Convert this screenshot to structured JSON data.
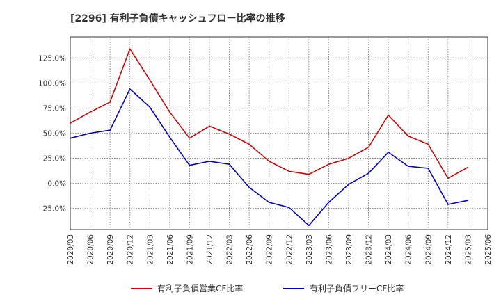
{
  "chart_data": {
    "type": "line",
    "title": "[2296]  有利子負債キャッシュフロー比率の推移",
    "xlabel": "",
    "ylabel": "",
    "ylim": [
      -46,
      146
    ],
    "y_ticks": [
      -25,
      0,
      25,
      50,
      75,
      100,
      125
    ],
    "y_tick_labels": [
      "-25.0%",
      "0.0%",
      "25.0%",
      "50.0%",
      "75.0%",
      "100.0%",
      "125.0%"
    ],
    "x_tick_labels": [
      "2020/03",
      "2020/06",
      "2020/09",
      "2020/12",
      "2021/03",
      "2021/06",
      "2021/09",
      "2021/12",
      "2022/03",
      "2022/06",
      "2022/09",
      "2022/12",
      "2023/03",
      "2023/06",
      "2023/09",
      "2023/12",
      "2024/03",
      "2024/06",
      "2024/09",
      "2024/12",
      "2025/03",
      "2025/06"
    ],
    "x": [
      "2020/03",
      "2020/06",
      "2020/09",
      "2020/12",
      "2021/03",
      "2021/06",
      "2021/09",
      "2021/12",
      "2022/03",
      "2022/06",
      "2022/09",
      "2022/12",
      "2023/03",
      "2023/06",
      "2023/09",
      "2023/12",
      "2024/03",
      "2024/06",
      "2024/09",
      "2024/12",
      "2025/03"
    ],
    "grid": true,
    "legend_position": "bottom",
    "series": [
      {
        "name": "有利子負債営業CF比率",
        "color": "#dd0000",
        "values": [
          60,
          71,
          81,
          134,
          103,
          71,
          45,
          57,
          49,
          39,
          22,
          12,
          9,
          19,
          25,
          36,
          68,
          47,
          39,
          5,
          16
        ]
      },
      {
        "name": "有利子負債フリーCF比率",
        "color": "#0000dd",
        "values": [
          45,
          50,
          53,
          94,
          76,
          46,
          18,
          22,
          19,
          -4,
          -19,
          -24,
          -42,
          -19,
          -1,
          10,
          31,
          17,
          15,
          -21,
          -17
        ]
      }
    ]
  }
}
